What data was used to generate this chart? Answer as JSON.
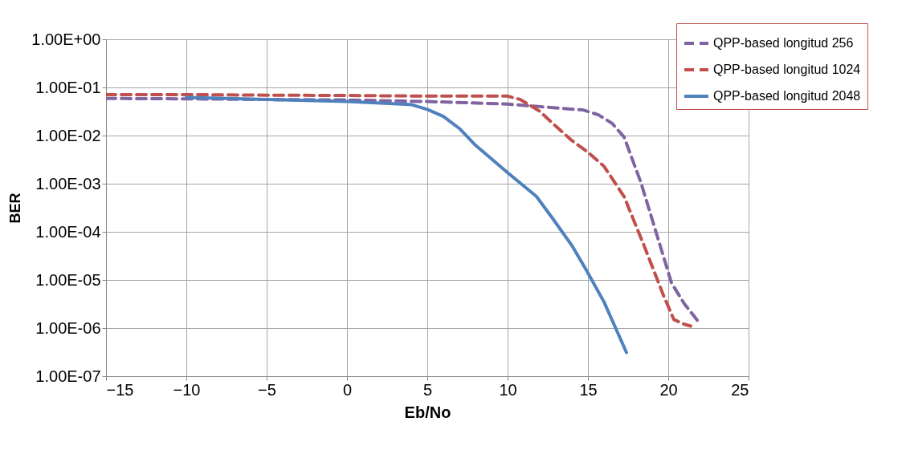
{
  "chart_data": {
    "type": "line",
    "xlabel": "Eb/No",
    "ylabel": "BER",
    "log": "y",
    "grid": true,
    "legend": "top right",
    "marker": "none",
    "xlim": [
      -15,
      25
    ],
    "xticks": [
      -15,
      -10,
      -5,
      0,
      5,
      10,
      15,
      20,
      25
    ],
    "ylim": [
      1e-07,
      1
    ],
    "yticks": [
      {
        "value": 1,
        "label": "1.00E+00"
      },
      {
        "value": 0.1,
        "label": "1.00E-01"
      },
      {
        "value": 0.01,
        "label": "1.00E-02"
      },
      {
        "value": 0.001,
        "label": "1.00E-03"
      },
      {
        "value": 0.0001,
        "label": "1.00E-04"
      },
      {
        "value": 1e-05,
        "label": "1.00E-05"
      },
      {
        "value": 1e-06,
        "label": "1.00E-06"
      },
      {
        "value": 1e-07,
        "label": "1.00E-07"
      }
    ],
    "series": [
      {
        "name": "QPP-based longitud 256",
        "color": "#8064a2",
        "line_style": "dashed",
        "x": [
          -15,
          -10,
          -5,
          0,
          5,
          6.7,
          10,
          12,
          14.7,
          15.65,
          16.5,
          17.25,
          18.3,
          19.27,
          20.2,
          21,
          22
        ],
        "values": [
          0.059,
          0.058,
          0.056,
          0.055,
          0.051,
          0.049,
          0.045,
          0.04,
          0.034,
          0.027,
          0.018,
          0.0093,
          0.00105,
          9.1e-05,
          8.7e-06,
          3.2e-06,
          1.2e-06
        ]
      },
      {
        "name": "QPP-based longitud 1024",
        "color": "#c0504d",
        "line_style": "dashed",
        "x": [
          -15,
          -10,
          -5,
          0,
          5,
          10,
          10.8,
          12,
          12.8,
          14,
          15,
          16,
          17.25,
          18.5,
          19.7,
          20.35,
          21,
          21.4
        ],
        "values": [
          0.071,
          0.071,
          0.069,
          0.068,
          0.066,
          0.066,
          0.056,
          0.032,
          0.018,
          0.0079,
          0.0045,
          0.0023,
          0.00054,
          5.1e-05,
          4.8e-06,
          1.5e-06,
          1.2e-06,
          1.1e-06
        ]
      },
      {
        "name": "QPP-based longitud 2048",
        "color": "#4f81bd",
        "line_style": "solid",
        "x": [
          -10,
          -5,
          0,
          4,
          5,
          6,
          7,
          8,
          10,
          11.8,
          12.8,
          14,
          14.9,
          16,
          17.4
        ],
        "values": [
          0.062,
          0.056,
          0.051,
          0.044,
          0.035,
          0.025,
          0.014,
          0.0063,
          0.0017,
          0.00054,
          0.00019,
          5.2e-05,
          1.6e-05,
          3.5e-06,
          3.1e-07
        ]
      }
    ]
  }
}
